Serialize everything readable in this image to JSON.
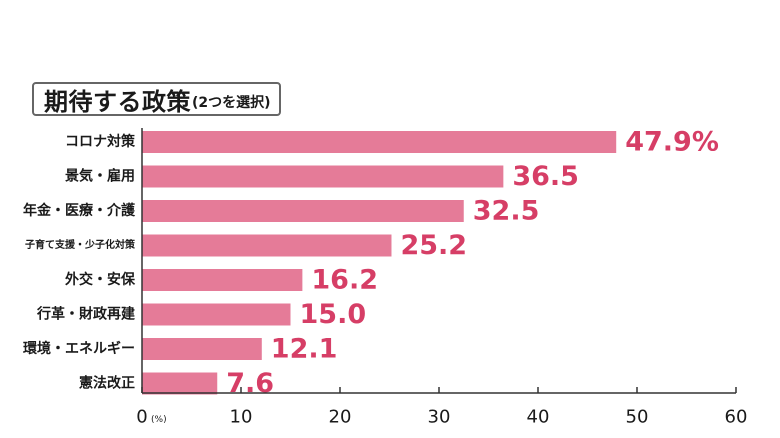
{
  "chart_data": {
    "type": "bar",
    "orientation": "horizontal",
    "title": "期待する政策",
    "subtitle": "(2つを選択)",
    "categories": [
      "コロナ対策",
      "景気・雇用",
      "年金・医療・介護",
      "子育て支援・少子化対策",
      "外交・安保",
      "行革・財政再建",
      "環境・エネルギー",
      "憲法改正"
    ],
    "values": [
      47.9,
      36.5,
      32.5,
      25.2,
      16.2,
      15.0,
      12.1,
      7.6
    ],
    "value_labels": [
      "47.9%",
      "36.5",
      "32.5",
      "25.2",
      "16.2",
      "15.0",
      "12.1",
      "7.6"
    ],
    "x_ticks": [
      0,
      10,
      20,
      30,
      40,
      50,
      60
    ],
    "x_tick_labels": [
      "0",
      "10",
      "20",
      "30",
      "40",
      "50",
      "60"
    ],
    "x_unit": "(%)",
    "xlim": [
      0,
      60
    ],
    "grid": false,
    "legend": "none",
    "bar_color": "#e57b98",
    "value_label_color": "#d63e66",
    "text_color": "#1a1a1a"
  }
}
